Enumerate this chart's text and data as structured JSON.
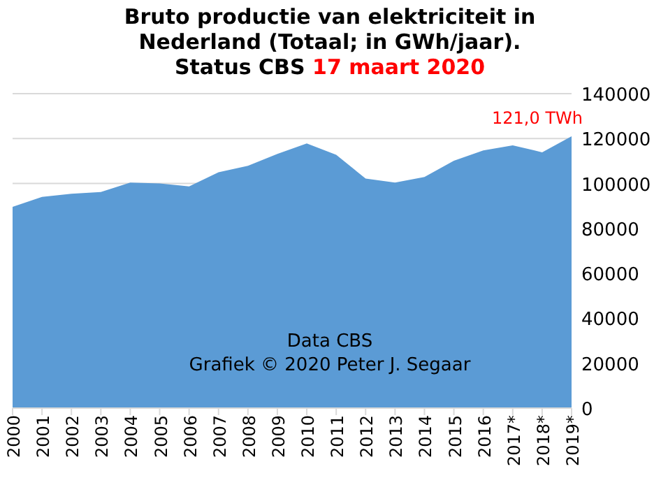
{
  "chart_data": {
    "type": "area",
    "title": "Bruto productie van elektriciteit in\nNederland (Totaal; in GWh/jaar).\nStatus CBS",
    "subtitle": "17 maart 2020",
    "categories": [
      "2000",
      "2001",
      "2002",
      "2003",
      "2004",
      "2005",
      "2006",
      "2007",
      "2008",
      "2009",
      "2010",
      "2011",
      "2012",
      "2013",
      "2014",
      "2015",
      "2016",
      "2017*",
      "2018*",
      "2019*"
    ],
    "series": [
      {
        "color": "#5b9bd5",
        "values": [
          89600,
          94000,
          95400,
          96200,
          100400,
          100000,
          98700,
          105000,
          107900,
          113200,
          117800,
          112800,
          102200,
          100400,
          102900,
          110100,
          114700,
          117000,
          113900,
          121000
        ]
      }
    ],
    "ylim": [
      0,
      140000
    ],
    "yticks": [
      0,
      20000,
      40000,
      60000,
      80000,
      100000,
      120000,
      140000
    ],
    "grid": "y",
    "annotations": [
      {
        "text": "121,0 TWh",
        "x": "2019*",
        "y": 121000
      },
      "Data CBS",
      "Grafiek © 2020 Peter J. Segaar"
    ]
  }
}
